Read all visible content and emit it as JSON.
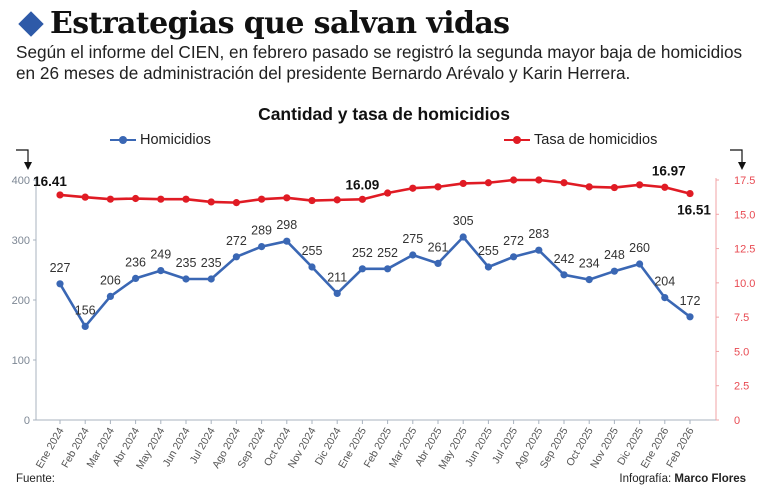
{
  "header": {
    "headline": "Estrategias que salvan vidas",
    "subtitle": "Según el informe del CIEN, en febrero pasado se registró la segunda mayor baja de homicidios en 26 meses de administración del presidente Bernardo Arévalo y Karin Herrera."
  },
  "footer": {
    "source": "Fuente:",
    "credit_label": "Infografía:",
    "credit_name": "Marco Flores"
  },
  "colors": {
    "homicidios": "#3a67b4",
    "tasa": "#e01b24",
    "accent": "#2e5aa8"
  },
  "chart_data": {
    "type": "line",
    "title": "Cantidad y tasa de homicidios",
    "categories": [
      "Ene 2024",
      "Feb 2024",
      "Mar 2024",
      "Abr 2024",
      "May 2024",
      "Jun 2024",
      "Jul 2024",
      "Ago 2024",
      "Sep 2024",
      "Oct 2024",
      "Nov 2024",
      "Dic 2024",
      "Ene 2025",
      "Feb 2025",
      "Mar 2025",
      "Abr 2025",
      "May 2025",
      "Jun 2025",
      "Jul 2025",
      "Ago 2025",
      "Sep 2025",
      "Oct 2025",
      "Nov 2025",
      "Dic 2025",
      "Ene 2026",
      "Feb 2026"
    ],
    "series": [
      {
        "name": "Homicidios",
        "axis": "left",
        "values": [
          227,
          156,
          206,
          236,
          249,
          235,
          235,
          272,
          289,
          298,
          255,
          211,
          252,
          252,
          275,
          261,
          305,
          255,
          272,
          283,
          242,
          234,
          248,
          260,
          204,
          172
        ],
        "labels": [
          "227",
          "156",
          "206",
          "236",
          "249",
          "235",
          "235",
          "272",
          "289",
          "298",
          "255",
          "211",
          "252",
          "252",
          "275",
          "261",
          "305",
          "255",
          "272",
          "283",
          "242",
          "234",
          "248",
          "260",
          "204",
          "172"
        ]
      },
      {
        "name": "Tasa de homicidios",
        "axis": "right",
        "values": [
          16.41,
          16.25,
          16.1,
          16.15,
          16.1,
          16.1,
          15.9,
          15.85,
          16.1,
          16.2,
          16.0,
          16.05,
          16.09,
          16.55,
          16.9,
          17.0,
          17.25,
          17.3,
          17.5,
          17.5,
          17.3,
          17.0,
          16.95,
          17.15,
          16.97,
          16.51
        ],
        "labels": [
          {
            "index": 0,
            "text": "16.41"
          },
          {
            "index": 12,
            "text": "16.09"
          },
          {
            "index": 24,
            "text": "16.97"
          },
          {
            "index": 25,
            "text": "16.51"
          }
        ]
      }
    ],
    "y_left": {
      "min": 0,
      "max": 400,
      "ticks": [
        "0",
        "100",
        "200",
        "300",
        "400"
      ]
    },
    "y_right": {
      "min": 0,
      "max": 17.5,
      "ticks": [
        "0",
        "2.5",
        "5.0",
        "7.5",
        "10.0",
        "12.5",
        "15.0",
        "17.5"
      ]
    },
    "grid": false,
    "legend": "top"
  }
}
